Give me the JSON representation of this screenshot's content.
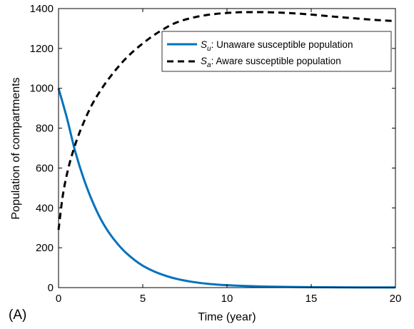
{
  "chart_data": {
    "type": "line",
    "panel_label": "(A)",
    "xlabel": "Time (year)",
    "ylabel": "Population of compartments",
    "xlim": [
      0,
      20
    ],
    "ylim": [
      0,
      1400
    ],
    "x_ticks": [
      0,
      5,
      10,
      15,
      20
    ],
    "y_ticks": [
      0,
      200,
      400,
      600,
      800,
      1000,
      1200,
      1400
    ],
    "grid": false,
    "legend_position": "top-right",
    "series": [
      {
        "name": "S_u: Unaware susceptible population",
        "legend": {
          "symbol": "S",
          "subscript": "u",
          "text": ": Unaware susceptible population"
        },
        "color": "#0072BD",
        "line_style": "solid",
        "x": [
          0,
          0.5,
          1,
          1.5,
          2,
          2.5,
          3,
          3.5,
          4,
          5,
          6,
          7,
          8,
          9,
          10,
          12,
          14,
          16,
          18,
          20
        ],
        "y": [
          1000,
          850,
          680,
          545,
          435,
          345,
          275,
          220,
          175,
          110,
          70,
          44,
          28,
          18,
          12,
          6,
          3,
          2,
          1,
          1
        ]
      },
      {
        "name": "S_a: Aware susceptible population",
        "legend": {
          "symbol": "S",
          "subscript": "a",
          "text": ": Aware susceptible population"
        },
        "color": "#000000",
        "line_style": "dashed",
        "x": [
          0,
          0.25,
          0.5,
          1,
          1.5,
          2,
          2.5,
          3,
          4,
          5,
          6,
          7,
          8,
          9,
          10,
          11,
          12,
          13,
          14,
          15,
          16,
          17,
          18,
          19,
          20
        ],
        "y": [
          290,
          460,
          570,
          720,
          830,
          920,
          990,
          1050,
          1150,
          1225,
          1285,
          1330,
          1355,
          1370,
          1378,
          1382,
          1382,
          1380,
          1376,
          1370,
          1362,
          1355,
          1348,
          1342,
          1337
        ]
      }
    ]
  }
}
